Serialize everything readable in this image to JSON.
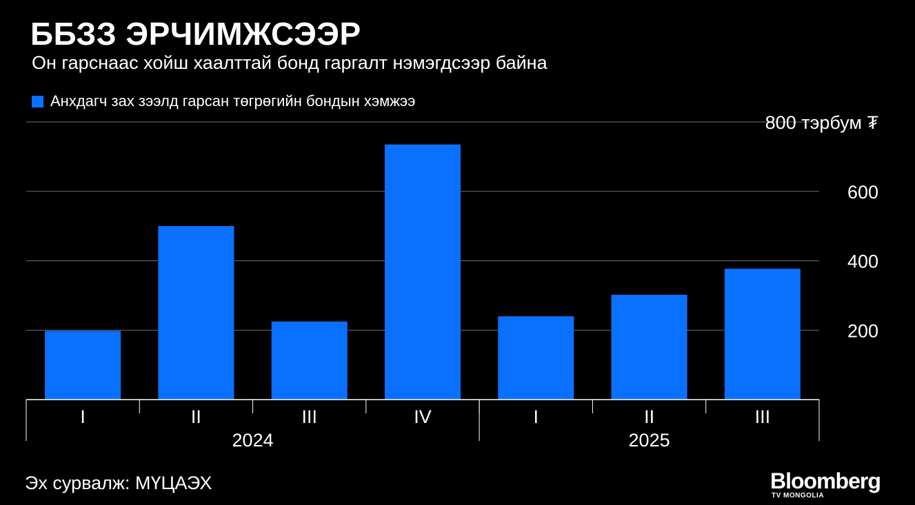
{
  "header": {
    "title": "ББЗЗ ЭРЧИМЖСЭЭР",
    "subtitle": "Он гарснаас хойш хаалттай бонд гаргалт нэмэгдсээр байна"
  },
  "colors": {
    "background": "#000000",
    "bar": "#0a70ff",
    "text": "#ffffff",
    "grid": "#6e6e6e"
  },
  "chart_data": {
    "type": "bar",
    "title": "ББЗЗ ЭРЧИМЖСЭЭР",
    "subtitle": "Он гарснаас хойш хаалттай бонд гаргалт нэмэгдсээр байна",
    "xlabel": "",
    "ylabel": "",
    "legend_position": "top-left",
    "grid": true,
    "ylim": [
      0,
      800
    ],
    "y_ticks": [
      {
        "value": 200,
        "label": "200"
      },
      {
        "value": 400,
        "label": "400"
      },
      {
        "value": 600,
        "label": "600"
      },
      {
        "value": 800,
        "label": "800 тэрбум ₮"
      }
    ],
    "categories": [
      "I",
      "II",
      "III",
      "IV",
      "I",
      "II",
      "III"
    ],
    "groups": [
      {
        "label": "2024",
        "count": 4
      },
      {
        "label": "2025",
        "count": 3
      }
    ],
    "series": [
      {
        "name": "Анхдагч зах зээлд гарсан төгрөгийн бондын хэмжээ",
        "values": [
          198,
          500,
          225,
          735,
          240,
          302,
          377
        ]
      }
    ]
  },
  "footer": {
    "source": "Эх сурвалж: МҮЦАЭХ",
    "brand_name": "Bloomberg",
    "brand_sub": "TV MONGOLIA"
  }
}
